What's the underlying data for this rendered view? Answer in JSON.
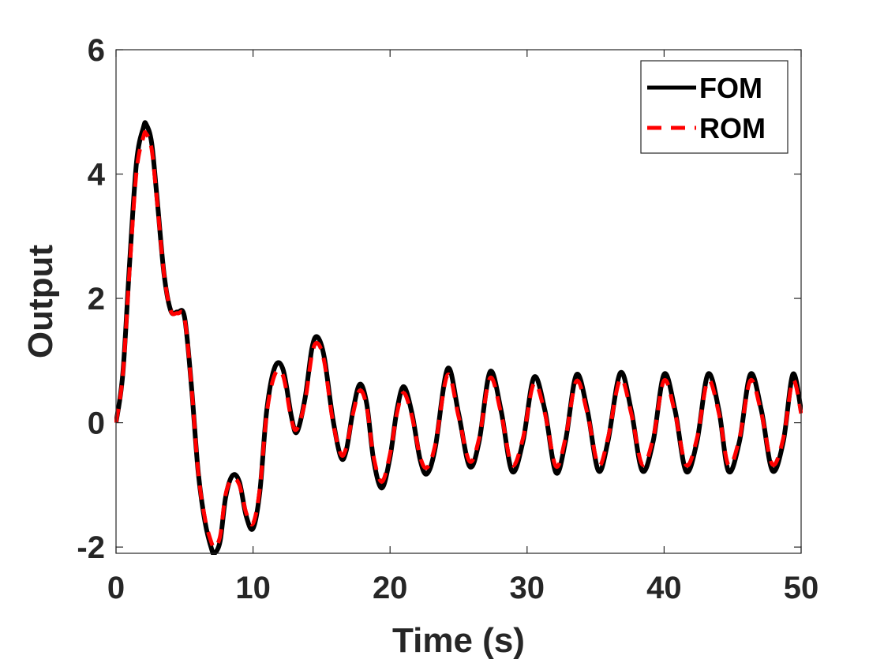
{
  "chart_data": {
    "type": "line",
    "title": "",
    "xlabel": "Time (s)",
    "ylabel": "Output",
    "xlim": [
      0,
      50
    ],
    "ylim": [
      -2.1,
      6
    ],
    "xticks": [
      0,
      10,
      20,
      30,
      40,
      50
    ],
    "xtick_labels": [
      "0",
      "10",
      "20",
      "30",
      "40",
      "50"
    ],
    "yticks": [
      -2,
      0,
      2,
      4,
      6
    ],
    "ytick_labels": [
      "-2",
      "0",
      "2",
      "4",
      "6"
    ],
    "grid": false,
    "legend_position": "top-right",
    "series": [
      {
        "name": "FOM",
        "color": "#000000",
        "style": "solid",
        "x": [
          0,
          0.5,
          1.0,
          1.5,
          2.0,
          2.2,
          2.6,
          3.0,
          3.5,
          4.0,
          4.5,
          5.0,
          5.5,
          6.0,
          6.5,
          7.0,
          7.2,
          7.6,
          8.0,
          8.5,
          9.0,
          9.5,
          10.0,
          10.5,
          11.0,
          11.6,
          12.2,
          12.8,
          13.2,
          13.8,
          14.3,
          14.7,
          15.2,
          15.8,
          16.4,
          16.8,
          17.3,
          17.8,
          18.3,
          18.8,
          19.4,
          20.0,
          20.5,
          21.0,
          21.6,
          22.2,
          22.7,
          23.3,
          24.2,
          25.0,
          25.8,
          26.5,
          27.3,
          28.1,
          28.9,
          29.7,
          30.5,
          31.3,
          32.1,
          32.8,
          33.6,
          34.4,
          35.2,
          35.9,
          36.8,
          37.6,
          38.4,
          39.2,
          40.0,
          40.8,
          41.6,
          42.4,
          43.2,
          44.0,
          44.7,
          45.5,
          46.3,
          47.1,
          47.9,
          48.7,
          49.4,
          50.0
        ],
        "y": [
          0,
          0.8,
          2.6,
          4.2,
          4.75,
          4.8,
          4.5,
          3.6,
          2.4,
          1.8,
          1.78,
          1.7,
          0.6,
          -0.8,
          -1.6,
          -2.05,
          -2.1,
          -1.9,
          -1.2,
          -0.85,
          -0.95,
          -1.5,
          -1.7,
          -1.1,
          0.2,
          0.9,
          0.85,
          0.1,
          -0.15,
          0.4,
          1.2,
          1.38,
          1.05,
          0.1,
          -0.55,
          -0.45,
          0.2,
          0.62,
          0.3,
          -0.6,
          -1.05,
          -0.55,
          0.2,
          0.58,
          0.15,
          -0.6,
          -0.82,
          -0.4,
          0.87,
          0.15,
          -0.7,
          -0.3,
          0.82,
          0.2,
          -0.78,
          -0.3,
          0.73,
          0.2,
          -0.8,
          -0.3,
          0.77,
          0.2,
          -0.77,
          -0.3,
          0.8,
          0.2,
          -0.77,
          -0.3,
          0.78,
          0.2,
          -0.78,
          -0.3,
          0.78,
          0.2,
          -0.78,
          -0.3,
          0.78,
          0.2,
          -0.77,
          -0.3,
          0.78,
          0.2
        ]
      },
      {
        "name": "ROM",
        "color": "#ff0000",
        "style": "dashed",
        "x": [
          0,
          0.5,
          1.0,
          1.5,
          2.0,
          2.2,
          2.6,
          3.0,
          3.5,
          4.0,
          4.5,
          5.0,
          5.5,
          6.0,
          6.5,
          7.0,
          7.2,
          7.6,
          8.0,
          8.5,
          9.0,
          9.5,
          10.0,
          10.5,
          11.0,
          11.6,
          12.2,
          12.8,
          13.2,
          13.8,
          14.3,
          14.7,
          15.2,
          15.8,
          16.4,
          16.8,
          17.3,
          17.8,
          18.3,
          18.8,
          19.4,
          20.0,
          20.5,
          21.0,
          21.6,
          22.2,
          22.7,
          23.3,
          24.2,
          25.0,
          25.8,
          26.5,
          27.3,
          28.1,
          28.9,
          29.7,
          30.5,
          31.3,
          32.1,
          32.8,
          33.6,
          34.4,
          35.2,
          35.9,
          36.8,
          37.6,
          38.4,
          39.2,
          40.0,
          40.8,
          41.6,
          42.4,
          43.2,
          44.0,
          44.7,
          45.5,
          46.3,
          47.1,
          47.9,
          48.7,
          49.4,
          50.0
        ],
        "y": [
          0,
          0.78,
          2.5,
          4.05,
          4.6,
          4.65,
          4.4,
          3.55,
          2.4,
          1.8,
          1.76,
          1.68,
          0.6,
          -0.8,
          -1.55,
          -1.95,
          -2.0,
          -1.82,
          -1.15,
          -0.9,
          -1.0,
          -1.45,
          -1.62,
          -1.05,
          0.15,
          0.78,
          0.75,
          0.05,
          -0.1,
          0.35,
          1.1,
          1.28,
          0.98,
          0.05,
          -0.5,
          -0.4,
          0.15,
          0.52,
          0.25,
          -0.55,
          -0.95,
          -0.5,
          0.15,
          0.48,
          0.1,
          -0.55,
          -0.72,
          -0.35,
          0.77,
          0.1,
          -0.62,
          -0.25,
          0.72,
          0.15,
          -0.68,
          -0.25,
          0.63,
          0.15,
          -0.7,
          -0.25,
          0.67,
          0.15,
          -0.68,
          -0.25,
          0.7,
          0.15,
          -0.67,
          -0.25,
          0.68,
          0.15,
          -0.68,
          -0.25,
          0.68,
          0.15,
          -0.68,
          -0.25,
          0.68,
          0.15,
          -0.67,
          -0.25,
          0.68,
          0.15
        ]
      }
    ]
  }
}
